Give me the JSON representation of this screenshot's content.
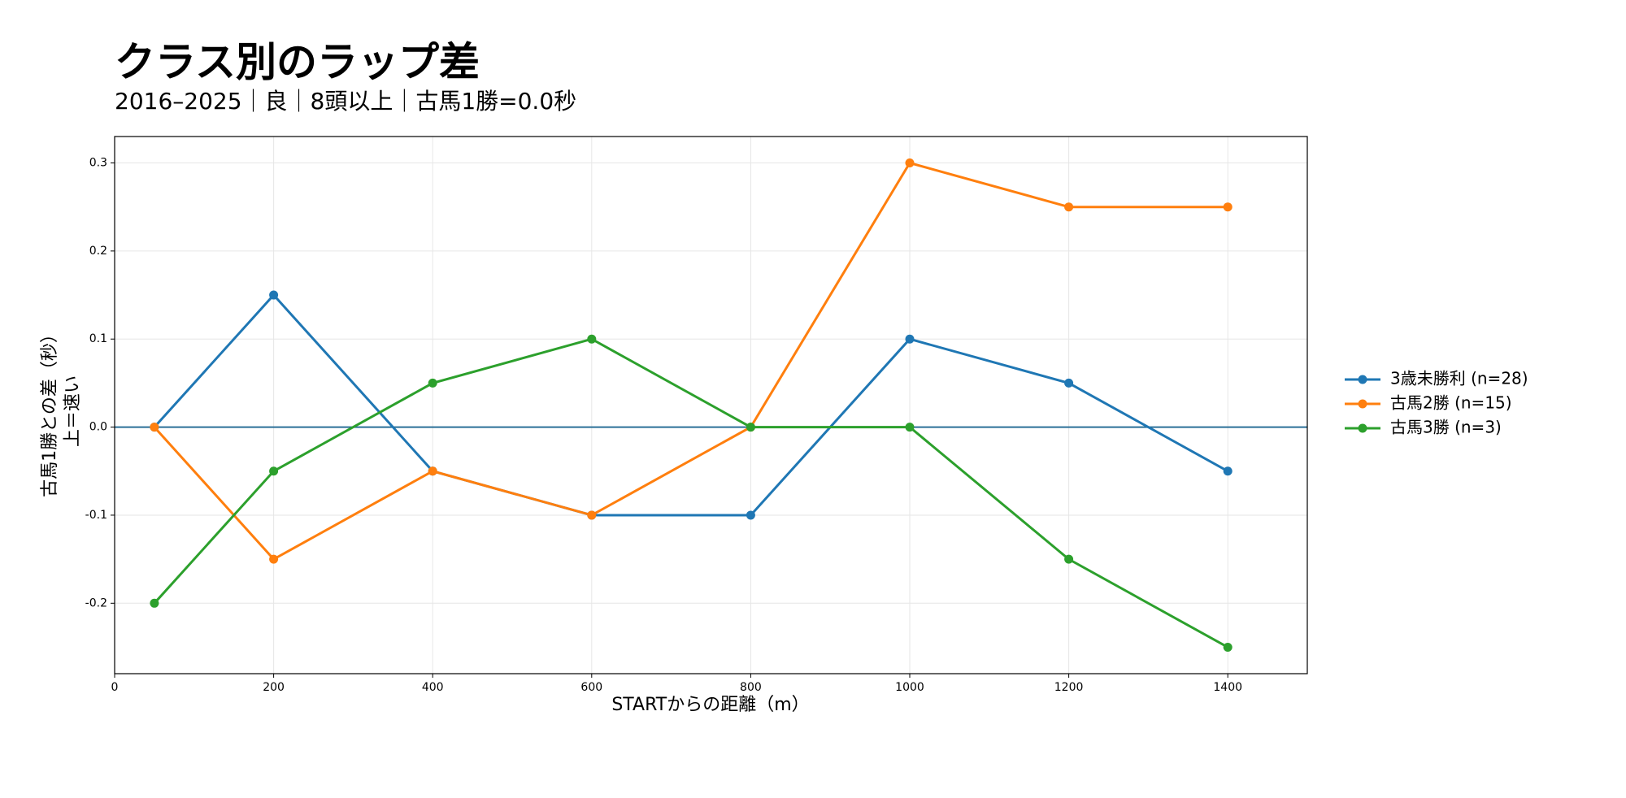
{
  "chart_data": {
    "type": "line",
    "title": "クラス別のラップ差",
    "subtitle": "2016–2025｜良｜8頭以上｜古馬1勝=0.0秒",
    "xlabel": "STARTからの距離（m）",
    "ylabel": [
      "古馬1勝との差（秒）",
      "上＝速い"
    ],
    "x": [
      50,
      200,
      400,
      600,
      800,
      1000,
      1200,
      1400
    ],
    "series": [
      {
        "name": "3歳未勝利 (n=28)",
        "color": "#1f77b4",
        "values": [
          0,
          0.15,
          -0.05,
          -0.1,
          -0.1,
          0.1,
          0.05,
          -0.05
        ]
      },
      {
        "name": "古馬2勝 (n=15)",
        "color": "#ff7f0e",
        "values": [
          0,
          -0.15,
          -0.05,
          -0.1,
          0,
          0.3,
          0.25,
          0.25
        ]
      },
      {
        "name": "古馬3勝 (n=3)",
        "color": "#2ca02c",
        "values": [
          -0.2,
          -0.05,
          0.05,
          0.1,
          0,
          0,
          -0.15,
          -0.25
        ]
      }
    ],
    "reference_line": 0,
    "reference_color": "#2a6f97",
    "xlim": [
      0,
      1500
    ],
    "xticks": [
      0,
      200,
      400,
      600,
      800,
      1000,
      1200,
      1400
    ],
    "ylim": [
      -0.28,
      0.33
    ],
    "yticks": [
      -0.2,
      -0.1,
      {
        "value": 0,
        "label": "0.0"
      },
      0.1,
      0.2,
      0.3
    ],
    "grid": true,
    "legend": "right"
  }
}
